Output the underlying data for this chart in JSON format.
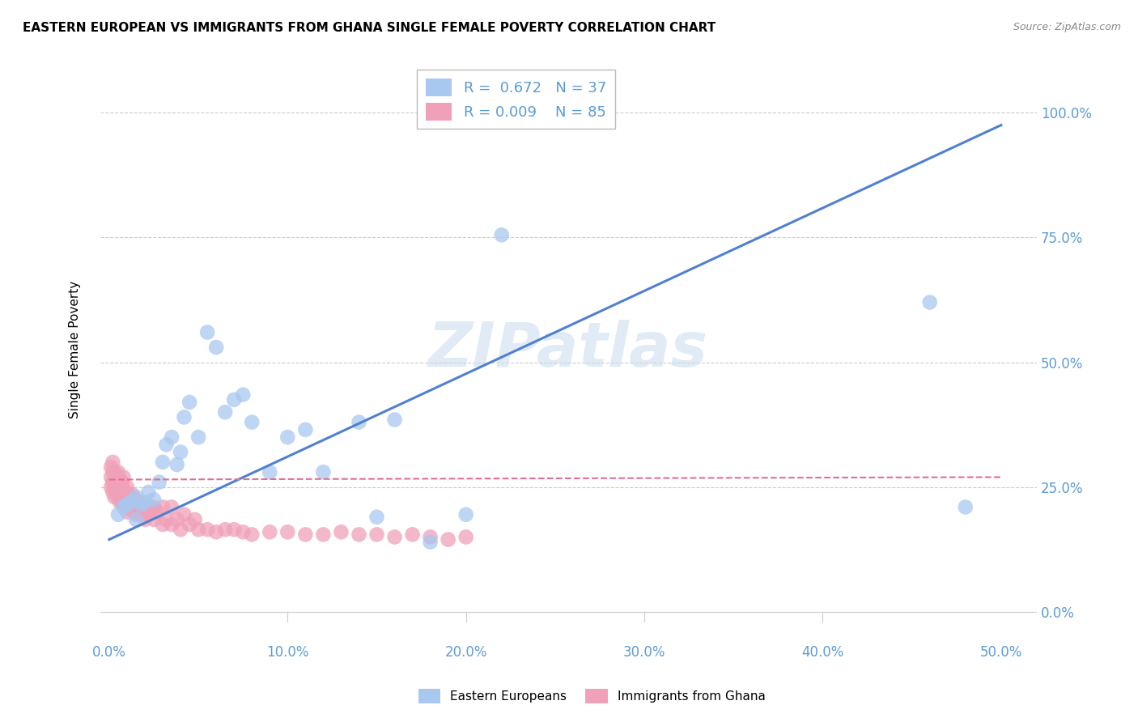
{
  "title": "EASTERN EUROPEAN VS IMMIGRANTS FROM GHANA SINGLE FEMALE POVERTY CORRELATION CHART",
  "source": "Source: ZipAtlas.com",
  "ylabel": "Single Female Poverty",
  "x_ticks": [
    0.0,
    0.1,
    0.2,
    0.3,
    0.4,
    0.5
  ],
  "y_ticks": [
    0.0,
    0.25,
    0.5,
    0.75,
    1.0
  ],
  "x_tick_labels": [
    "0.0%",
    "10.0%",
    "20.0%",
    "30.0%",
    "40.0%",
    "50.0%"
  ],
  "y_tick_labels": [
    "0.0%",
    "25.0%",
    "50.0%",
    "75.0%",
    "100.0%"
  ],
  "xlim": [
    -0.005,
    0.52
  ],
  "ylim": [
    -0.05,
    1.1
  ],
  "legend_labels": [
    "Eastern Europeans",
    "Immigrants from Ghana"
  ],
  "legend_R_blue": "R =  0.672",
  "legend_N_blue": "N = 37",
  "legend_R_pink": "R = 0.009",
  "legend_N_pink": "N = 85",
  "color_blue": "#A8C8F0",
  "color_pink": "#F0A0B8",
  "line_blue": "#5080D0",
  "line_pink": "#E07090",
  "watermark": "ZIPatlas",
  "background_color": "#FFFFFF",
  "grid_color": "#CCCCCC",
  "tick_color": "#5B9BD5",
  "blue_x": [
    0.005,
    0.008,
    0.01,
    0.012,
    0.015,
    0.015,
    0.018,
    0.02,
    0.022,
    0.025,
    0.028,
    0.03,
    0.032,
    0.035,
    0.038,
    0.04,
    0.042,
    0.045,
    0.05,
    0.055,
    0.06,
    0.065,
    0.07,
    0.075,
    0.08,
    0.09,
    0.1,
    0.11,
    0.12,
    0.14,
    0.15,
    0.16,
    0.18,
    0.2,
    0.22,
    0.46,
    0.48
  ],
  "blue_y": [
    0.195,
    0.21,
    0.215,
    0.22,
    0.185,
    0.23,
    0.215,
    0.22,
    0.24,
    0.225,
    0.26,
    0.3,
    0.335,
    0.35,
    0.295,
    0.32,
    0.39,
    0.42,
    0.35,
    0.56,
    0.53,
    0.4,
    0.425,
    0.435,
    0.38,
    0.28,
    0.35,
    0.365,
    0.28,
    0.38,
    0.19,
    0.385,
    0.14,
    0.195,
    0.755,
    0.62,
    0.21
  ],
  "pink_x": [
    0.001,
    0.001,
    0.001,
    0.002,
    0.002,
    0.002,
    0.002,
    0.003,
    0.003,
    0.003,
    0.003,
    0.004,
    0.004,
    0.004,
    0.005,
    0.005,
    0.005,
    0.006,
    0.006,
    0.006,
    0.007,
    0.007,
    0.007,
    0.008,
    0.008,
    0.008,
    0.009,
    0.009,
    0.01,
    0.01,
    0.01,
    0.011,
    0.011,
    0.012,
    0.012,
    0.013,
    0.013,
    0.014,
    0.014,
    0.015,
    0.015,
    0.016,
    0.016,
    0.017,
    0.017,
    0.018,
    0.018,
    0.019,
    0.02,
    0.02,
    0.021,
    0.022,
    0.023,
    0.025,
    0.025,
    0.027,
    0.03,
    0.03,
    0.032,
    0.035,
    0.035,
    0.038,
    0.04,
    0.042,
    0.045,
    0.048,
    0.05,
    0.055,
    0.06,
    0.065,
    0.07,
    0.075,
    0.08,
    0.09,
    0.1,
    0.11,
    0.12,
    0.13,
    0.14,
    0.15,
    0.16,
    0.17,
    0.18,
    0.19,
    0.2
  ],
  "pink_y": [
    0.25,
    0.27,
    0.29,
    0.24,
    0.26,
    0.28,
    0.3,
    0.23,
    0.25,
    0.26,
    0.28,
    0.24,
    0.255,
    0.27,
    0.23,
    0.25,
    0.28,
    0.22,
    0.245,
    0.265,
    0.22,
    0.24,
    0.26,
    0.225,
    0.245,
    0.27,
    0.215,
    0.24,
    0.2,
    0.225,
    0.25,
    0.21,
    0.235,
    0.205,
    0.23,
    0.215,
    0.235,
    0.205,
    0.225,
    0.195,
    0.22,
    0.2,
    0.22,
    0.2,
    0.22,
    0.195,
    0.215,
    0.2,
    0.185,
    0.21,
    0.2,
    0.195,
    0.21,
    0.185,
    0.21,
    0.2,
    0.175,
    0.21,
    0.185,
    0.175,
    0.21,
    0.185,
    0.165,
    0.195,
    0.175,
    0.185,
    0.165,
    0.165,
    0.16,
    0.165,
    0.165,
    0.16,
    0.155,
    0.16,
    0.16,
    0.155,
    0.155,
    0.16,
    0.155,
    0.155,
    0.15,
    0.155,
    0.15,
    0.145,
    0.15
  ],
  "blue_line_x0": 0.0,
  "blue_line_y0": 0.145,
  "blue_line_x1": 0.5,
  "blue_line_y1": 0.975,
  "pink_line_x0": 0.0,
  "pink_line_y0": 0.265,
  "pink_line_x1": 0.5,
  "pink_line_y1": 0.27
}
